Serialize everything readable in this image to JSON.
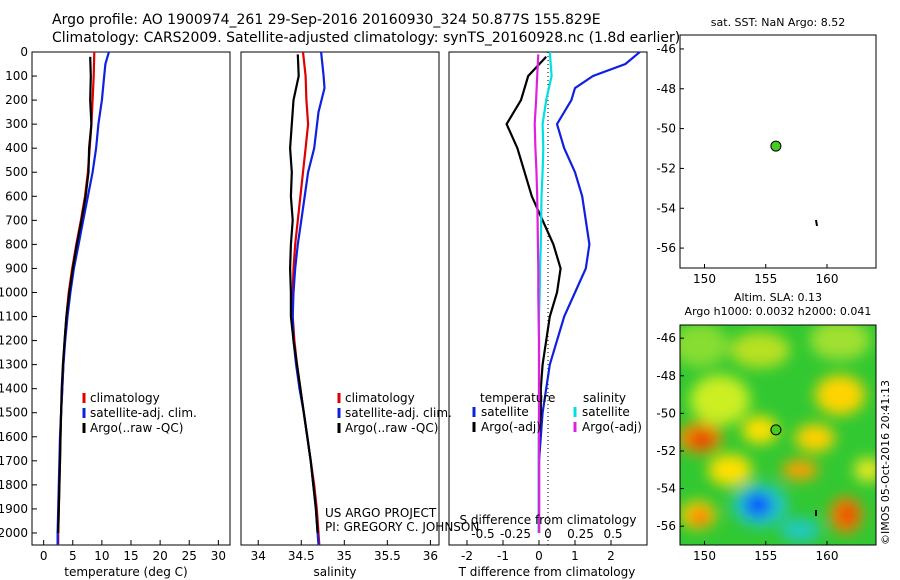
{
  "header": {
    "line1": "Argo profile: AO 1900974_261 29-Sep-2016 20160930_324 50.877S 155.829E",
    "line2": "Climatology: CARS2009. Satellite-adjusted climatology: synTS_20160928.nc (1.8d earlier)"
  },
  "depth_ticks": [
    "0",
    "100",
    "200",
    "300",
    "400",
    "500",
    "600",
    "700",
    "800",
    "900",
    "1000",
    "1100",
    "1200",
    "1300",
    "1400",
    "1500",
    "1600",
    "1700",
    "1800",
    "1900",
    "2000"
  ],
  "colors": {
    "climatology": "#e00000",
    "satellite": "#1020e0",
    "argo": "#000000",
    "cyan": "#00e0e0",
    "magenta": "#e020e0",
    "dot": "#44cc22"
  },
  "chart_data": [
    {
      "type": "line",
      "id": "temperature",
      "xlabel": "temperature (deg C)",
      "xlim": [
        -2,
        32
      ],
      "xticks": [
        "0",
        "5",
        "10",
        "15",
        "20",
        "25",
        "30"
      ],
      "ylim": [
        0,
        2050
      ],
      "legend": [
        "climatology",
        "satellite-adj. clim.",
        "Argo(..raw -QC)"
      ],
      "series": [
        {
          "name": "climatology",
          "color": "#e00000",
          "points": [
            [
              8.7,
              0
            ],
            [
              8.6,
              100
            ],
            [
              8.4,
              200
            ],
            [
              8.2,
              300
            ],
            [
              7.9,
              400
            ],
            [
              7.6,
              500
            ],
            [
              7.1,
              600
            ],
            [
              6.4,
              700
            ],
            [
              5.6,
              800
            ],
            [
              4.9,
              900
            ],
            [
              4.3,
              1000
            ],
            [
              3.9,
              1100
            ],
            [
              3.6,
              1200
            ],
            [
              3.4,
              1300
            ],
            [
              3.2,
              1400
            ],
            [
              3.0,
              1500
            ],
            [
              2.9,
              1600
            ],
            [
              2.8,
              1700
            ],
            [
              2.7,
              1800
            ],
            [
              2.6,
              1900
            ],
            [
              2.5,
              2000
            ],
            [
              2.5,
              2050
            ]
          ]
        },
        {
          "name": "satellite-adj. clim.",
          "color": "#1020e0",
          "points": [
            [
              11.2,
              0
            ],
            [
              10.6,
              50
            ],
            [
              10.4,
              100
            ],
            [
              10.0,
              200
            ],
            [
              9.4,
              300
            ],
            [
              9.0,
              400
            ],
            [
              8.4,
              500
            ],
            [
              7.6,
              600
            ],
            [
              6.8,
              700
            ],
            [
              6.0,
              800
            ],
            [
              5.2,
              900
            ],
            [
              4.6,
              1000
            ],
            [
              4.1,
              1100
            ],
            [
              3.7,
              1200
            ],
            [
              3.4,
              1300
            ],
            [
              3.2,
              1400
            ],
            [
              3.0,
              1500
            ],
            [
              2.8,
              1600
            ],
            [
              2.7,
              1700
            ],
            [
              2.6,
              1800
            ],
            [
              2.5,
              1900
            ],
            [
              2.4,
              2000
            ],
            [
              2.4,
              2050
            ]
          ]
        },
        {
          "name": "Argo(..raw -QC)",
          "color": "#000000",
          "points": [
            [
              8.0,
              20
            ],
            [
              8.1,
              100
            ],
            [
              8.0,
              200
            ],
            [
              8.2,
              300
            ],
            [
              7.8,
              400
            ],
            [
              7.7,
              500
            ],
            [
              7.2,
              600
            ],
            [
              6.5,
              700
            ],
            [
              5.7,
              800
            ],
            [
              5.0,
              900
            ],
            [
              4.4,
              1000
            ],
            [
              3.9,
              1100
            ],
            [
              3.6,
              1200
            ],
            [
              3.3,
              1300
            ],
            [
              3.1,
              1400
            ],
            [
              3.0,
              1500
            ],
            [
              2.9,
              1600
            ],
            [
              2.8,
              1700
            ],
            [
              2.7,
              1800
            ],
            [
              2.6,
              1900
            ],
            [
              2.5,
              2000
            ]
          ]
        }
      ]
    },
    {
      "type": "line",
      "id": "salinity",
      "xlabel": "salinity",
      "xlim": [
        33.8,
        36.1
      ],
      "xticks": [
        "34",
        "34.5",
        "35",
        "35.5",
        "36"
      ],
      "ylim": [
        0,
        2050
      ],
      "legend": [
        "climatology",
        "satellite-adj. clim.",
        "Argo(..raw -QC)"
      ],
      "annotation": [
        "US ARGO PROJECT",
        "PI: GREGORY C. JOHNSON"
      ],
      "series": [
        {
          "name": "climatology",
          "color": "#e00000",
          "points": [
            [
              34.52,
              0
            ],
            [
              34.55,
              100
            ],
            [
              34.56,
              200
            ],
            [
              34.58,
              300
            ],
            [
              34.55,
              400
            ],
            [
              34.52,
              500
            ],
            [
              34.49,
              600
            ],
            [
              34.46,
              700
            ],
            [
              34.43,
              800
            ],
            [
              34.41,
              900
            ],
            [
              34.4,
              1000
            ],
            [
              34.4,
              1100
            ],
            [
              34.42,
              1200
            ],
            [
              34.45,
              1300
            ],
            [
              34.49,
              1400
            ],
            [
              34.53,
              1500
            ],
            [
              34.57,
              1600
            ],
            [
              34.61,
              1700
            ],
            [
              34.65,
              1800
            ],
            [
              34.68,
              1900
            ],
            [
              34.7,
              2000
            ],
            [
              34.71,
              2050
            ]
          ]
        },
        {
          "name": "satellite-adj. clim.",
          "color": "#1020e0",
          "points": [
            [
              34.73,
              0
            ],
            [
              34.76,
              100
            ],
            [
              34.77,
              150
            ],
            [
              34.7,
              250
            ],
            [
              34.65,
              400
            ],
            [
              34.58,
              500
            ],
            [
              34.54,
              600
            ],
            [
              34.5,
              700
            ],
            [
              34.46,
              800
            ],
            [
              34.43,
              900
            ],
            [
              34.41,
              1000
            ],
            [
              34.4,
              1100
            ],
            [
              34.41,
              1200
            ],
            [
              34.44,
              1300
            ],
            [
              34.48,
              1400
            ],
            [
              34.53,
              1500
            ],
            [
              34.57,
              1600
            ],
            [
              34.61,
              1700
            ],
            [
              34.64,
              1800
            ],
            [
              34.67,
              1900
            ],
            [
              34.69,
              2000
            ],
            [
              34.7,
              2050
            ]
          ]
        },
        {
          "name": "Argo(..raw -QC)",
          "color": "#000000",
          "points": [
            [
              34.46,
              10
            ],
            [
              34.47,
              100
            ],
            [
              34.41,
              200
            ],
            [
              34.39,
              300
            ],
            [
              34.37,
              400
            ],
            [
              34.39,
              500
            ],
            [
              34.38,
              600
            ],
            [
              34.4,
              700
            ],
            [
              34.38,
              800
            ],
            [
              34.37,
              900
            ],
            [
              34.38,
              1000
            ],
            [
              34.38,
              1100
            ],
            [
              34.41,
              1200
            ],
            [
              34.45,
              1300
            ],
            [
              34.49,
              1400
            ],
            [
              34.53,
              1500
            ],
            [
              34.57,
              1600
            ],
            [
              34.61,
              1700
            ],
            [
              34.64,
              1800
            ],
            [
              34.67,
              1900
            ],
            [
              34.69,
              2000
            ]
          ]
        }
      ]
    },
    {
      "type": "line",
      "id": "difference",
      "xlabel": "T difference from climatology",
      "xlabel2": "S difference from climatology",
      "xlim": [
        -2.5,
        3.0
      ],
      "xticks": [
        "-2",
        "-1",
        "0",
        "1",
        "2"
      ],
      "xticks2": [
        "-0.5",
        "-0.25",
        "0",
        "0.25",
        "0.5"
      ],
      "ylim": [
        0,
        2050
      ],
      "legend_titles": [
        "temperature",
        "salinity"
      ],
      "legend": [
        "satellite",
        "Argo(-adj)",
        "satellite",
        "Argo(-adj)"
      ],
      "series": [
        {
          "name": "temperature satellite",
          "color": "#1020e0",
          "points": [
            [
              2.8,
              0
            ],
            [
              2.4,
              50
            ],
            [
              1.5,
              100
            ],
            [
              1.0,
              150
            ],
            [
              0.9,
              200
            ],
            [
              0.5,
              300
            ],
            [
              0.7,
              400
            ],
            [
              1.0,
              500
            ],
            [
              1.2,
              600
            ],
            [
              1.3,
              700
            ],
            [
              1.4,
              800
            ],
            [
              1.3,
              900
            ],
            [
              1.0,
              1000
            ],
            [
              0.7,
              1100
            ],
            [
              0.5,
              1200
            ],
            [
              0.3,
              1300
            ],
            [
              0.2,
              1400
            ],
            [
              0.1,
              1500
            ],
            [
              0.05,
              1600
            ],
            [
              0.0,
              1700
            ],
            [
              0.0,
              1800
            ],
            [
              0.0,
              2000
            ]
          ]
        },
        {
          "name": "temperature Argo(-adj)",
          "color": "#000000",
          "points": [
            [
              0.2,
              20
            ],
            [
              -0.3,
              100
            ],
            [
              -0.5,
              200
            ],
            [
              -0.9,
              300
            ],
            [
              -0.6,
              400
            ],
            [
              -0.4,
              500
            ],
            [
              -0.2,
              600
            ],
            [
              0.1,
              700
            ],
            [
              0.4,
              800
            ],
            [
              0.6,
              900
            ],
            [
              0.5,
              1000
            ],
            [
              0.3,
              1100
            ],
            [
              0.2,
              1200
            ],
            [
              0.1,
              1300
            ],
            [
              0.05,
              1400
            ],
            [
              0.05,
              1500
            ],
            [
              0.0,
              1600
            ],
            [
              0.0,
              1800
            ],
            [
              0.0,
              2000
            ]
          ]
        },
        {
          "name": "salinity satellite",
          "color": "#00e0e0",
          "points": [
            [
              0.3,
              0
            ],
            [
              0.35,
              100
            ],
            [
              0.2,
              200
            ],
            [
              0.1,
              300
            ],
            [
              0.12,
              400
            ],
            [
              0.1,
              500
            ],
            [
              0.07,
              600
            ],
            [
              0.06,
              700
            ],
            [
              0.05,
              800
            ],
            [
              0.03,
              900
            ],
            [
              0.02,
              1000
            ],
            [
              0.0,
              1100
            ],
            [
              0.0,
              1300
            ],
            [
              0.0,
              1500
            ],
            [
              -0.01,
              1700
            ],
            [
              -0.01,
              2000
            ]
          ]
        },
        {
          "name": "salinity Argo(-adj)",
          "color": "#e020e0",
          "points": [
            [
              -0.02,
              10
            ],
            [
              -0.05,
              100
            ],
            [
              -0.08,
              200
            ],
            [
              -0.12,
              300
            ],
            [
              -0.1,
              400
            ],
            [
              -0.07,
              500
            ],
            [
              -0.05,
              600
            ],
            [
              -0.04,
              700
            ],
            [
              -0.03,
              800
            ],
            [
              -0.02,
              900
            ],
            [
              -0.02,
              1000
            ],
            [
              -0.01,
              1100
            ],
            [
              0.0,
              1200
            ],
            [
              0.0,
              1400
            ],
            [
              0.0,
              1600
            ],
            [
              0.0,
              1800
            ],
            [
              0.0,
              2000
            ]
          ]
        }
      ]
    },
    {
      "type": "scatter",
      "id": "sst-map",
      "title": "sat. SST: NaN Argo: 8.52",
      "xlim": [
        148,
        164
      ],
      "ylim": [
        -57,
        -45.3
      ],
      "xticks": [
        "150",
        "155",
        "160"
      ],
      "yticks": [
        "-46",
        "-48",
        "-50",
        "-52",
        "-54",
        "-56"
      ],
      "points": [
        {
          "x": 155.829,
          "y": -50.877
        }
      ]
    },
    {
      "type": "heatmap",
      "id": "sla-map",
      "title": "Altim. SLA: 0.13",
      "subtitle": "Argo h1000: 0.0032 h2000: 0.041",
      "xlim": [
        148,
        164
      ],
      "ylim": [
        -57,
        -45.3
      ],
      "xticks": [
        "150",
        "155",
        "160"
      ],
      "yticks": [
        "-46",
        "-48",
        "-50",
        "-52",
        "-54",
        "-56"
      ],
      "points": [
        {
          "x": 155.829,
          "y": -50.877
        }
      ]
    }
  ],
  "credit": "©IMOS 05-Oct-2016 20:41:13"
}
